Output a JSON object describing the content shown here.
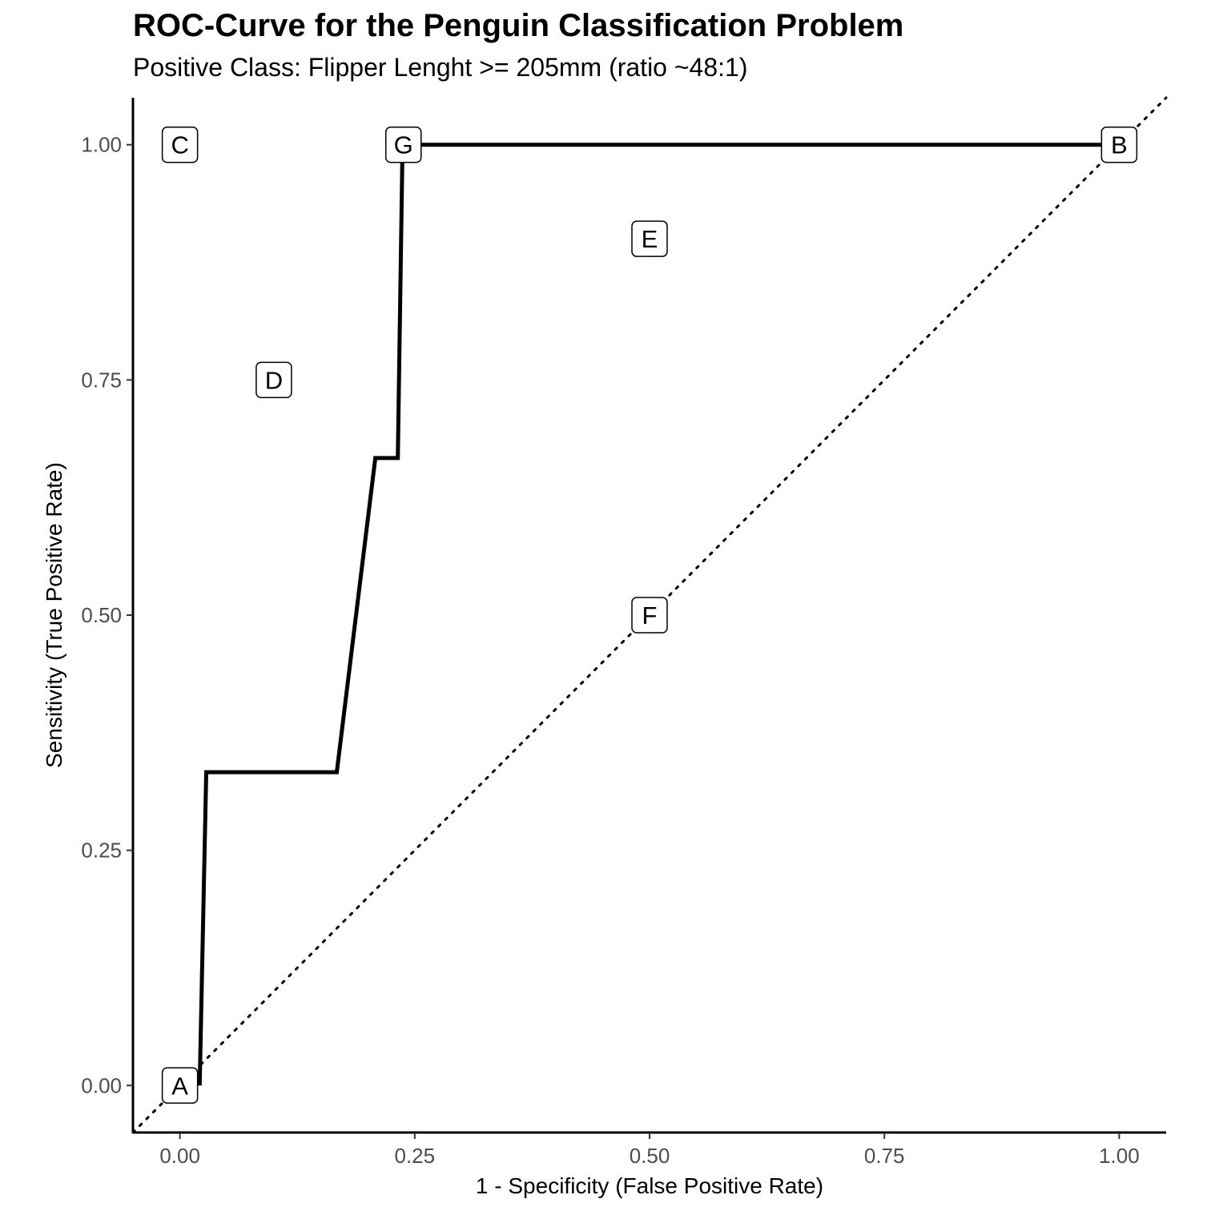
{
  "chart_data": {
    "type": "line",
    "title": "ROC-Curve for the Penguin Classification Problem",
    "subtitle": "Positive Class: Flipper Lenght >= 205mm (ratio ~48:1)",
    "xlabel": "1 - Specificity (False Positive Rate)",
    "ylabel": "Sensitivity (True Positive Rate)",
    "xlim": [
      -0.05,
      1.05
    ],
    "ylim": [
      -0.05,
      1.05
    ],
    "x_ticks": [
      "0.00",
      "0.25",
      "0.50",
      "0.75",
      "1.00"
    ],
    "y_ticks": [
      "0.00",
      "0.25",
      "0.50",
      "0.75",
      "1.00"
    ],
    "grid": false,
    "series": [
      {
        "style": "solid",
        "x": [
          0.021,
          0.028,
          0.167,
          0.208,
          0.232,
          0.237,
          0.25,
          1.0
        ],
        "y": [
          0.0,
          0.333,
          0.333,
          0.667,
          0.667,
          1.0,
          1.0,
          1.0
        ]
      },
      {
        "style": "dotted",
        "x": [
          -0.05,
          1.05
        ],
        "y": [
          -0.05,
          1.05
        ]
      }
    ],
    "annotations": [
      {
        "label": "A",
        "x": 0.0,
        "y": 0.0
      },
      {
        "label": "B",
        "x": 1.0,
        "y": 1.0
      },
      {
        "label": "C",
        "x": 0.0,
        "y": 1.0
      },
      {
        "label": "D",
        "x": 0.1,
        "y": 0.75
      },
      {
        "label": "E",
        "x": 0.5,
        "y": 0.9
      },
      {
        "label": "F",
        "x": 0.5,
        "y": 0.5
      },
      {
        "label": "G",
        "x": 0.238,
        "y": 1.0
      }
    ]
  }
}
